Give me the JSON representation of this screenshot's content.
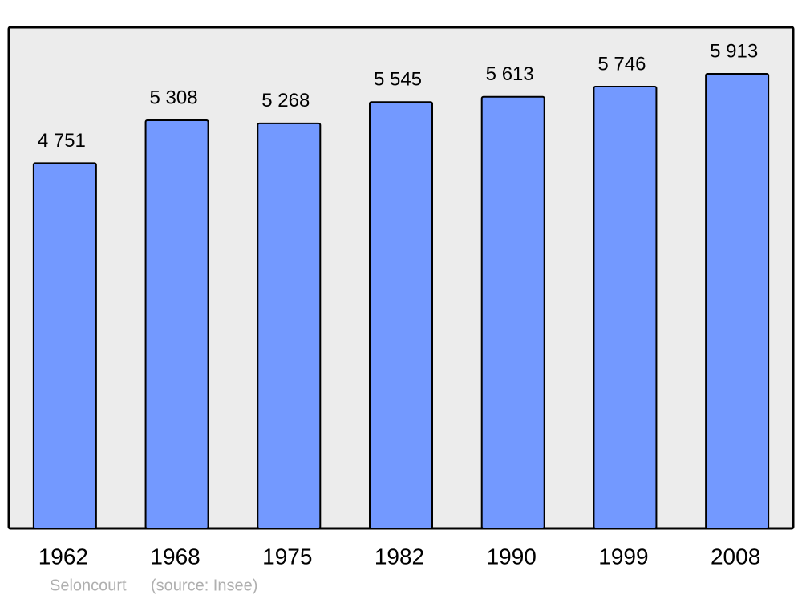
{
  "chart_data": {
    "type": "bar",
    "categories": [
      "1962",
      "1968",
      "1975",
      "1982",
      "1990",
      "1999",
      "2008"
    ],
    "values": [
      4751,
      5308,
      5268,
      5545,
      5613,
      5746,
      5913
    ],
    "value_labels": [
      "4 751",
      "5 308",
      "5 268",
      "5 545",
      "5 613",
      "5 746",
      "5 913"
    ],
    "color": "#7399ff",
    "background": "#ececec",
    "place": "Seloncourt",
    "source": "(source: Insee)"
  }
}
